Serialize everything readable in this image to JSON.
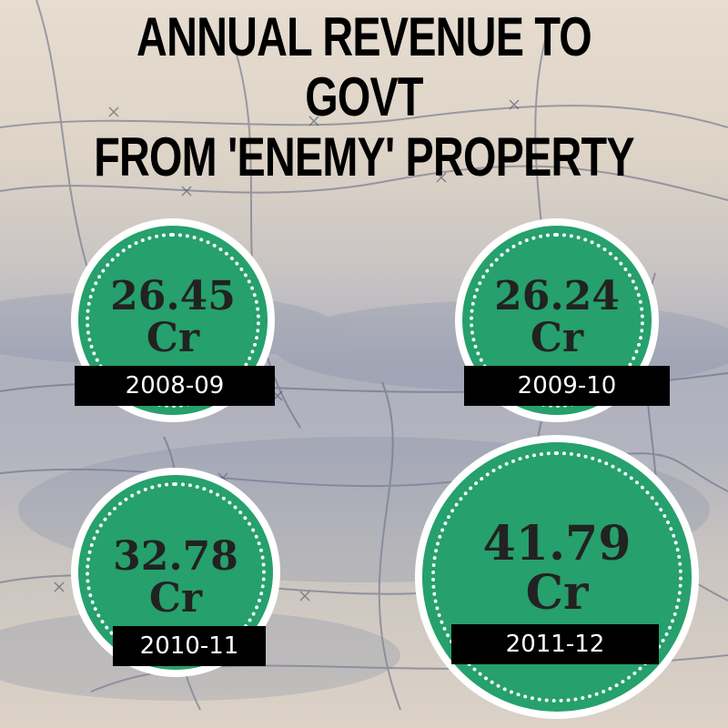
{
  "title_lines": [
    "ANNUAL REVENUE TO",
    "GOVT",
    "FROM 'ENEMY' PROPERTY"
  ],
  "badges": [
    {
      "amount": "26.45",
      "unit": "Cr",
      "year": "2008-09"
    },
    {
      "amount": "26.24",
      "unit": "Cr",
      "year": "2009-10"
    },
    {
      "amount": "32.78",
      "unit": "Cr",
      "year": "2010-11"
    },
    {
      "amount": "41.79",
      "unit": "Cr",
      "year": "2011-12"
    }
  ],
  "colors": {
    "badge_green": "#26a06c",
    "badge_outer": "#ffffff",
    "label_bg": "#000000",
    "title_text": "#000000"
  }
}
